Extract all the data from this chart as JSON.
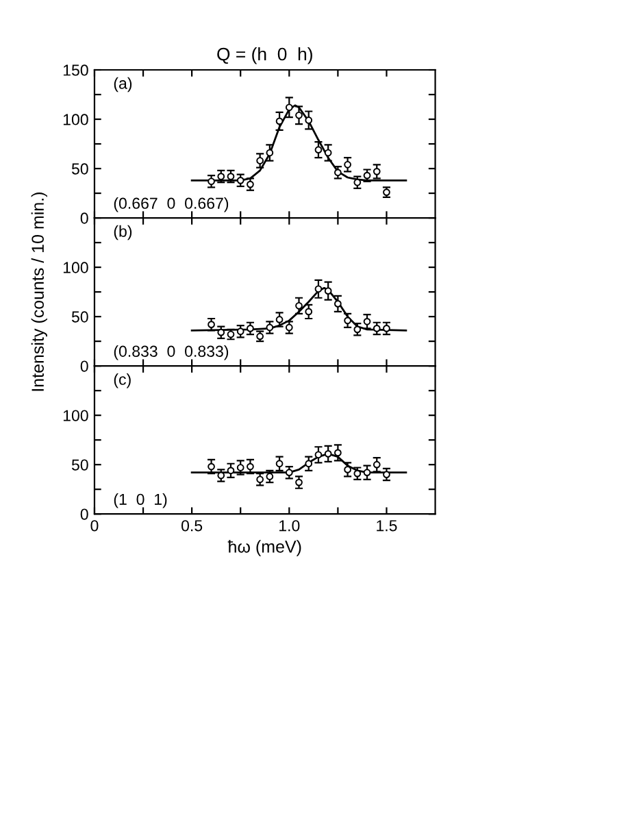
{
  "chart_data": [
    {
      "type": "scatter",
      "title": "Q = (h  0  h)",
      "annotations": [
        "(a)",
        "(0.667  0  0.667)"
      ],
      "marker": "circle",
      "tick_labels": "y",
      "xlim": [
        0,
        1.75
      ],
      "xticks": [
        0,
        {
          "value": 0.25,
          "label": null
        },
        {
          "value": 0.5,
          "label": null
        },
        {
          "value": 0.75,
          "label": null
        },
        {
          "value": 1,
          "label": null
        },
        {
          "value": 1.25,
          "label": null
        },
        {
          "value": 1.5,
          "label": null
        }
      ],
      "ylim": [
        0,
        150
      ],
      "yticks": [
        0,
        {
          "value": 25,
          "label": null
        },
        50,
        {
          "value": 75,
          "label": null
        },
        100,
        {
          "value": 125,
          "label": null
        },
        150
      ],
      "x": [
        0.6,
        0.65,
        0.7,
        0.75,
        0.8,
        0.85,
        0.9,
        0.95,
        1.0,
        1.05,
        1.1,
        1.15,
        1.2,
        1.25,
        1.3,
        1.35,
        1.4,
        1.45,
        1.5
      ],
      "series": [
        {
          "color": "#000000",
          "values": [
            37,
            42,
            42,
            38,
            34,
            58,
            66,
            98,
            112,
            104,
            99,
            69,
            66,
            46,
            54,
            36,
            43,
            47,
            26
          ],
          "errors": [
            6,
            6,
            6,
            6,
            6,
            7,
            8,
            9,
            10,
            9,
            9,
            8,
            8,
            6,
            7,
            6,
            6,
            7,
            5
          ]
        },
        {
          "type": "line",
          "color": "#000000",
          "marker": "none",
          "line_style": "solid",
          "x": [
            0.5,
            0.75,
            0.8,
            0.85,
            0.9,
            0.95,
            1.0,
            1.03,
            1.05,
            1.1,
            1.15,
            1.2,
            1.25,
            1.3,
            1.35,
            1.4,
            1.6
          ],
          "values": [
            38,
            38,
            40,
            48,
            65,
            92,
            110,
            114,
            112,
            98,
            79,
            61,
            47,
            41,
            39,
            38,
            38
          ]
        }
      ]
    },
    {
      "type": "scatter",
      "ylabel": "Intensity (counts / 10 min.)",
      "annotations": [
        "(b)",
        "(0.833  0  0.833)"
      ],
      "marker": "circle",
      "tick_labels": "y",
      "xlim": [
        0,
        1.75
      ],
      "xticks": [
        0,
        {
          "value": 0.25,
          "label": null
        },
        {
          "value": 0.5,
          "label": null
        },
        {
          "value": 0.75,
          "label": null
        },
        {
          "value": 1,
          "label": null
        },
        {
          "value": 1.25,
          "label": null
        },
        {
          "value": 1.5,
          "label": null
        }
      ],
      "ylim": [
        0,
        150
      ],
      "yticks": [
        0,
        {
          "value": 25,
          "label": null
        },
        50,
        {
          "value": 75,
          "label": null
        },
        100,
        {
          "value": 125,
          "label": null
        },
        {
          "value": 150,
          "label": null
        }
      ],
      "x": [
        0.6,
        0.65,
        0.7,
        0.75,
        0.8,
        0.85,
        0.9,
        0.95,
        1.0,
        1.05,
        1.1,
        1.15,
        1.2,
        1.25,
        1.3,
        1.35,
        1.4,
        1.45,
        1.5
      ],
      "series": [
        {
          "color": "#000000",
          "values": [
            42,
            34,
            32,
            35,
            38,
            30,
            39,
            47,
            39,
            61,
            55,
            78,
            76,
            63,
            46,
            37,
            45,
            38,
            38
          ],
          "errors": [
            6,
            6,
            5,
            6,
            6,
            5,
            6,
            7,
            6,
            8,
            7,
            9,
            9,
            8,
            7,
            6,
            7,
            6,
            6
          ]
        },
        {
          "type": "line",
          "color": "#000000",
          "marker": "none",
          "line_style": "solid",
          "x": [
            0.5,
            0.8,
            0.9,
            0.95,
            1.0,
            1.05,
            1.1,
            1.15,
            1.18,
            1.2,
            1.25,
            1.3,
            1.35,
            1.4,
            1.6
          ],
          "values": [
            36,
            37,
            38,
            41,
            46,
            55,
            65,
            76,
            79,
            77,
            65,
            50,
            40,
            37,
            36
          ]
        }
      ]
    },
    {
      "type": "scatter",
      "xlabel": "ħω (meV)",
      "annotations": [
        "(c)",
        "(1  0  1)"
      ],
      "marker": "circle",
      "xlim": [
        0,
        1.75
      ],
      "xticks": [
        0,
        {
          "value": 0.25,
          "label": null
        },
        0.5,
        {
          "value": 0.75,
          "label": null
        },
        {
          "value": 1,
          "label": "1.0"
        },
        {
          "value": 1.25,
          "label": null
        },
        1.5
      ],
      "ylim": [
        0,
        150
      ],
      "yticks": [
        0,
        {
          "value": 25,
          "label": null
        },
        50,
        {
          "value": 75,
          "label": null
        },
        100,
        {
          "value": 125,
          "label": null
        },
        {
          "value": 150,
          "label": null
        }
      ],
      "x": [
        0.6,
        0.65,
        0.7,
        0.75,
        0.8,
        0.85,
        0.9,
        0.95,
        1.0,
        1.05,
        1.1,
        1.15,
        1.2,
        1.25,
        1.3,
        1.35,
        1.4,
        1.45,
        1.5
      ],
      "series": [
        {
          "color": "#000000",
          "values": [
            48,
            39,
            44,
            47,
            48,
            35,
            38,
            51,
            42,
            32,
            51,
            60,
            61,
            62,
            45,
            41,
            42,
            50,
            40
          ],
          "errors": [
            7,
            6,
            7,
            7,
            7,
            6,
            6,
            7,
            6,
            6,
            7,
            8,
            8,
            8,
            7,
            6,
            7,
            7,
            6
          ]
        },
        {
          "type": "line",
          "color": "#000000",
          "marker": "none",
          "line_style": "solid",
          "x": [
            0.5,
            1.0,
            1.05,
            1.1,
            1.15,
            1.2,
            1.25,
            1.3,
            1.35,
            1.4,
            1.6
          ],
          "values": [
            42,
            42,
            45,
            52,
            58,
            61,
            58,
            49,
            44,
            42,
            42
          ]
        }
      ]
    }
  ]
}
